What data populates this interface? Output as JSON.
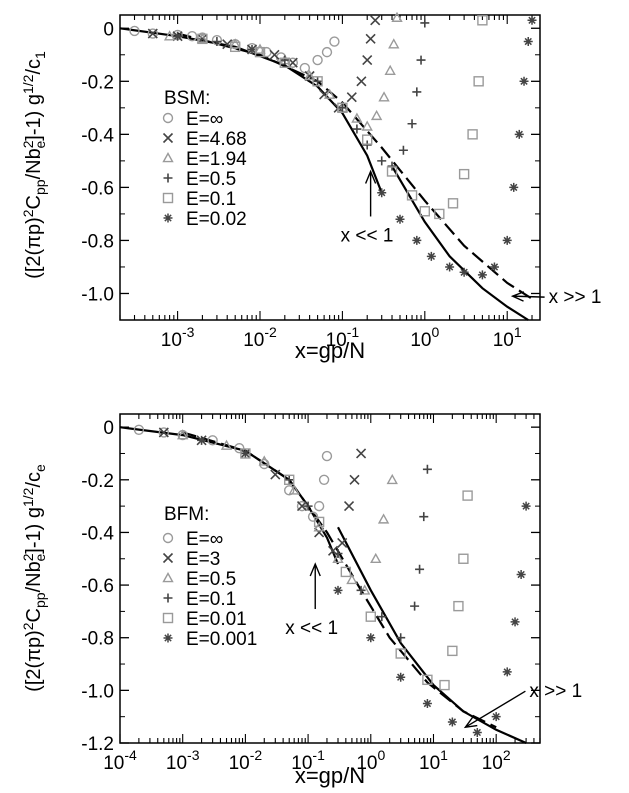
{
  "chart_data": [
    {
      "type": "scatter",
      "id": "top",
      "xlabel": "x=gp/N",
      "ylabel": "([2(πp)²Cpp/Nbe²]-1) g^{1/2}/c1",
      "x_scale": "log",
      "xlim": [
        0.0002,
        25
      ],
      "ylim": [
        -1.1,
        0.05
      ],
      "x_ticks": [
        0.001,
        0.01,
        0.1,
        1,
        10
      ],
      "x_tick_labels": [
        "10-3",
        "10-2",
        "10-1",
        "100",
        "101"
      ],
      "y_ticks": [
        0,
        -0.2,
        -0.4,
        -0.6,
        -0.8,
        -1.0
      ],
      "y_tick_labels": [
        "0",
        "-0.2",
        "-0.4",
        "-0.6",
        "-0.8",
        "-1.0"
      ],
      "legend_title": "BSM:",
      "legend_position": "left",
      "series": [
        {
          "name": "E=∞",
          "marker": "circle",
          "color": "#9a9a9a",
          "x": [
            0.0003,
            0.0005,
            0.001,
            0.0015,
            0.002,
            0.003,
            0.005,
            0.008,
            0.012,
            0.018,
            0.025,
            0.035,
            0.05,
            0.065,
            0.08
          ],
          "y": [
            -0.01,
            -0.02,
            -0.025,
            -0.03,
            -0.035,
            -0.045,
            -0.06,
            -0.075,
            -0.09,
            -0.11,
            -0.13,
            -0.15,
            -0.12,
            -0.09,
            -0.05
          ]
        },
        {
          "name": "E=4.68",
          "marker": "x",
          "color": "#444444",
          "x": [
            0.0005,
            0.001,
            0.002,
            0.004,
            0.008,
            0.015,
            0.025,
            0.04,
            0.06,
            0.09,
            0.13,
            0.17,
            0.2,
            0.22,
            0.25
          ],
          "y": [
            -0.02,
            -0.03,
            -0.04,
            -0.06,
            -0.08,
            -0.1,
            -0.13,
            -0.18,
            -0.25,
            -0.3,
            -0.26,
            -0.2,
            -0.12,
            -0.04,
            0.03
          ]
        },
        {
          "name": "E=1.94",
          "marker": "triangle",
          "color": "#9a9a9a",
          "x": [
            0.0008,
            0.002,
            0.005,
            0.01,
            0.02,
            0.04,
            0.07,
            0.1,
            0.15,
            0.2,
            0.26,
            0.32,
            0.38,
            0.42,
            0.46
          ],
          "y": [
            -0.03,
            -0.04,
            -0.06,
            -0.08,
            -0.12,
            -0.18,
            -0.25,
            -0.3,
            -0.34,
            -0.37,
            -0.33,
            -0.26,
            -0.16,
            -0.06,
            0.04
          ]
        },
        {
          "name": "E=0.5",
          "marker": "plus",
          "color": "#444444",
          "x": [
            0.001,
            0.003,
            0.008,
            0.02,
            0.05,
            0.1,
            0.15,
            0.2,
            0.3,
            0.4,
            0.55,
            0.7,
            0.8,
            0.9,
            1.0
          ],
          "y": [
            -0.03,
            -0.05,
            -0.08,
            -0.12,
            -0.2,
            -0.3,
            -0.38,
            -0.44,
            -0.5,
            -0.52,
            -0.46,
            -0.36,
            -0.24,
            -0.12,
            0.02
          ]
        },
        {
          "name": "E=0.1",
          "marker": "square",
          "color": "#9a9a9a",
          "x": [
            0.002,
            0.005,
            0.01,
            0.02,
            0.05,
            0.1,
            0.2,
            0.4,
            0.7,
            1.0,
            1.5,
            2.2,
            3.0,
            3.8,
            4.5,
            5.0
          ],
          "y": [
            -0.04,
            -0.07,
            -0.09,
            -0.13,
            -0.2,
            -0.3,
            -0.42,
            -0.54,
            -0.63,
            -0.69,
            -0.7,
            -0.66,
            -0.55,
            -0.4,
            -0.2,
            0.03
          ]
        },
        {
          "name": "E=0.02",
          "marker": "star",
          "color": "#444444",
          "x": [
            0.3,
            0.5,
            0.8,
            1.2,
            2.0,
            3.0,
            5.0,
            7.0,
            10.0,
            12.0,
            14.0,
            16.0,
            18.0,
            20.0
          ],
          "y": [
            -0.62,
            -0.72,
            -0.8,
            -0.86,
            -0.9,
            -0.92,
            -0.93,
            -0.9,
            -0.8,
            -0.6,
            -0.4,
            -0.2,
            -0.05,
            0.03
          ]
        }
      ],
      "lines": [
        {
          "name": "x << 1 asymptote",
          "style": "solid",
          "x": [
            0.0002,
            0.001,
            0.005,
            0.02,
            0.05,
            0.1,
            0.2,
            0.3
          ],
          "y": [
            -0.0,
            -0.03,
            -0.07,
            -0.14,
            -0.22,
            -0.32,
            -0.48,
            -0.62
          ]
        },
        {
          "name": "x >> 1 asymptote",
          "style": "solid",
          "x": [
            0.4,
            1.0,
            2.0,
            5.0,
            10.0,
            18.0
          ],
          "y": [
            -0.52,
            -0.73,
            -0.86,
            -0.98,
            -1.05,
            -1.1
          ]
        },
        {
          "name": "crossover",
          "style": "dashed",
          "x": [
            0.001,
            0.01,
            0.05,
            0.1,
            0.3,
            1.0,
            3.0,
            10.0,
            20.0
          ],
          "y": [
            -0.02,
            -0.1,
            -0.2,
            -0.28,
            -0.45,
            -0.65,
            -0.82,
            -0.96,
            -1.02
          ]
        }
      ],
      "annotations": [
        {
          "text": "x << 1",
          "arrow_to": [
            0.22,
            -0.54
          ]
        },
        {
          "text": "x >> 1",
          "arrow_to": [
            11,
            -1.01
          ]
        }
      ]
    },
    {
      "type": "scatter",
      "id": "bottom",
      "xlabel": "x=gp/N",
      "ylabel": "([2(πp)²Cpp/Nbe²]-1) g^{1/2}/ce",
      "x_scale": "log",
      "xlim": [
        0.0001,
        500
      ],
      "ylim": [
        -1.2,
        0.05
      ],
      "x_ticks": [
        0.0001,
        0.001,
        0.01,
        0.1,
        1,
        10,
        100
      ],
      "x_tick_labels": [
        "10-4",
        "10-3",
        "10-2",
        "10-1",
        "100",
        "101",
        "102"
      ],
      "y_ticks": [
        0,
        -0.2,
        -0.4,
        -0.6,
        -0.8,
        -1.0,
        -1.2
      ],
      "y_tick_labels": [
        "0",
        "-0.2",
        "-0.4",
        "-0.6",
        "-0.8",
        "-1.0",
        "-1.2"
      ],
      "legend_title": "BFM:",
      "legend_position": "left",
      "series": [
        {
          "name": "E=∞",
          "marker": "circle",
          "color": "#9a9a9a",
          "x": [
            0.0002,
            0.0005,
            0.001,
            0.003,
            0.008,
            0.02,
            0.05,
            0.08,
            0.12,
            0.15,
            0.18,
            0.2
          ],
          "y": [
            -0.01,
            -0.02,
            -0.03,
            -0.05,
            -0.08,
            -0.14,
            -0.24,
            -0.3,
            -0.34,
            -0.3,
            -0.2,
            -0.11
          ]
        },
        {
          "name": "E=3",
          "marker": "x",
          "color": "#444444",
          "x": [
            0.0005,
            0.002,
            0.01,
            0.03,
            0.08,
            0.15,
            0.25,
            0.35,
            0.45,
            0.55,
            0.7
          ],
          "y": [
            -0.02,
            -0.05,
            -0.1,
            -0.18,
            -0.3,
            -0.4,
            -0.47,
            -0.44,
            -0.3,
            -0.2,
            -0.1
          ]
        },
        {
          "name": "E=0.5",
          "marker": "triangle",
          "color": "#9a9a9a",
          "x": [
            0.001,
            0.005,
            0.02,
            0.06,
            0.15,
            0.3,
            0.5,
            0.8,
            1.2,
            1.6,
            2.2
          ],
          "y": [
            -0.03,
            -0.07,
            -0.13,
            -0.24,
            -0.38,
            -0.5,
            -0.58,
            -0.62,
            -0.5,
            -0.35,
            -0.2
          ]
        },
        {
          "name": "E=0.1",
          "marker": "plus",
          "color": "#444444",
          "x": [
            0.002,
            0.01,
            0.05,
            0.1,
            0.3,
            0.7,
            1.5,
            3.0,
            5.0,
            6.0,
            7.0,
            8.0
          ],
          "y": [
            -0.05,
            -0.1,
            -0.2,
            -0.3,
            -0.48,
            -0.62,
            -0.72,
            -0.8,
            -0.68,
            -0.54,
            -0.34,
            -0.16
          ]
        },
        {
          "name": "E=0.01",
          "marker": "square",
          "color": "#9a9a9a",
          "x": [
            0.01,
            0.05,
            0.15,
            0.4,
            1.0,
            3.0,
            8.0,
            15.0,
            20.0,
            25.0,
            30.0,
            35.0
          ],
          "y": [
            -0.1,
            -0.2,
            -0.36,
            -0.55,
            -0.72,
            -0.86,
            -0.96,
            -0.98,
            -0.85,
            -0.68,
            -0.5,
            -0.26
          ]
        },
        {
          "name": "E=0.001",
          "marker": "star",
          "color": "#444444",
          "x": [
            0.3,
            1.0,
            3.0,
            8.0,
            20.0,
            50.0,
            100.0,
            150.0,
            200.0,
            250.0,
            300.0
          ],
          "y": [
            -0.62,
            -0.8,
            -0.95,
            -1.05,
            -1.12,
            -1.16,
            -1.1,
            -0.93,
            -0.74,
            -0.56,
            -0.3
          ]
        }
      ],
      "lines": [
        {
          "name": "x << 1 asymptote",
          "style": "solid",
          "x": [
            0.0001,
            0.001,
            0.01,
            0.05,
            0.1,
            0.2,
            0.3
          ],
          "y": [
            -0.0,
            -0.03,
            -0.09,
            -0.2,
            -0.3,
            -0.42,
            -0.52
          ]
        },
        {
          "name": "x >> 1 asymptote",
          "style": "solid",
          "x": [
            0.3,
            1.0,
            3.0,
            10.0,
            30.0,
            100.0,
            300.0
          ],
          "y": [
            -0.38,
            -0.62,
            -0.82,
            -0.98,
            -1.08,
            -1.15,
            -1.2
          ]
        },
        {
          "name": "crossover",
          "style": "dashed",
          "x": [
            0.001,
            0.01,
            0.05,
            0.2,
            0.7,
            2.0,
            8.0,
            30.0,
            100.0
          ],
          "y": [
            -0.02,
            -0.09,
            -0.2,
            -0.4,
            -0.62,
            -0.8,
            -0.97,
            -1.08,
            -1.14
          ]
        }
      ],
      "annotations": [
        {
          "text": "x << 1",
          "arrow_to": [
            0.13,
            -0.52
          ]
        },
        {
          "text": "x >> 1",
          "arrow_to": [
            30,
            -1.14
          ]
        }
      ]
    }
  ]
}
